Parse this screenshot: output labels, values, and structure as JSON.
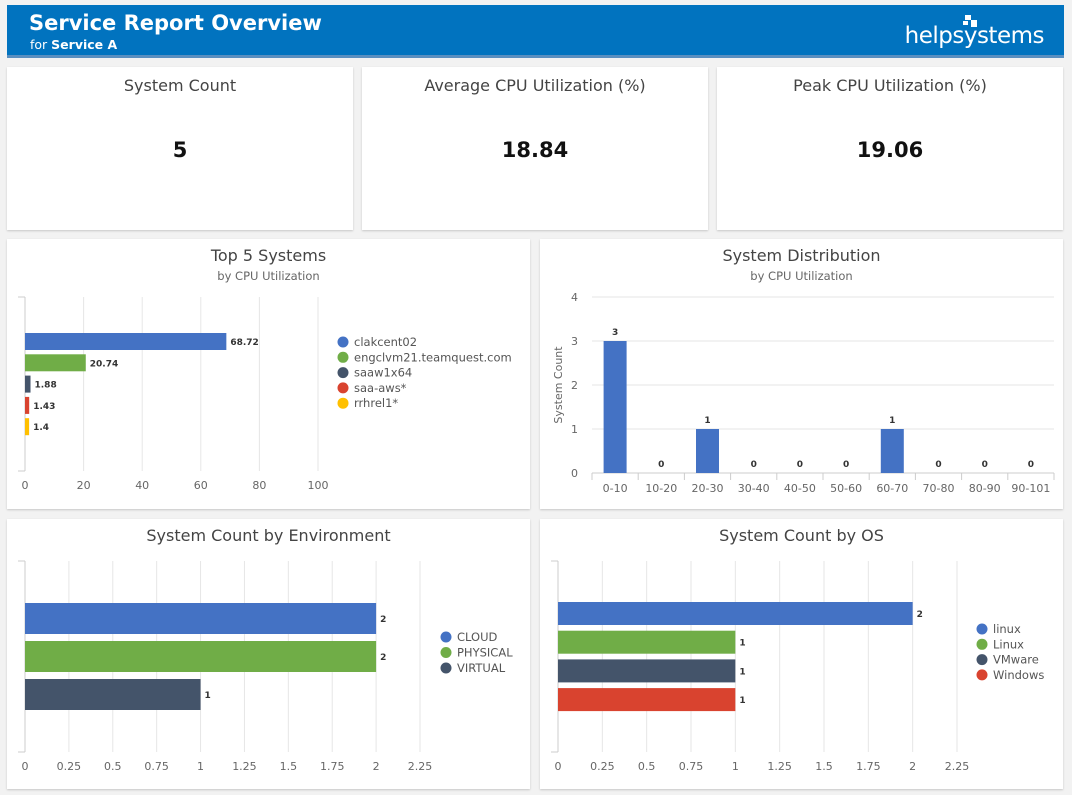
{
  "header": {
    "title": "Service Report Overview",
    "subtitle_prefix": "for",
    "service_name": "Service A",
    "logo_text": "helpsystems"
  },
  "kpis": [
    {
      "label": "System Count",
      "value": "5"
    },
    {
      "label": "Average CPU Utilization (%)",
      "value": "18.84"
    },
    {
      "label": "Peak CPU Utilization (%)",
      "value": "19.06"
    }
  ],
  "chart_data": [
    {
      "id": "top5",
      "type": "bar",
      "orientation": "horizontal",
      "title": "Top 5 Systems",
      "subtitle": "by CPU Utilization",
      "categories": [
        "clakcent02",
        "engclvm21.teamquest.com",
        "saaw1x64",
        "saa-aws*",
        "rrhrel1*"
      ],
      "values": [
        68.72,
        20.74,
        1.88,
        1.43,
        1.4
      ],
      "data_labels": [
        "68.72",
        "20.74",
        "1.88",
        "1.43",
        "1.4"
      ],
      "colors": [
        "#4472c4",
        "#70ad47",
        "#44546a",
        "#d9432f",
        "#ffc000"
      ],
      "xlim": [
        0,
        100
      ],
      "xticks": [
        "0",
        "20",
        "40",
        "60",
        "80",
        "100"
      ],
      "legend": "right"
    },
    {
      "id": "dist",
      "type": "bar",
      "orientation": "vertical",
      "title": "System Distribution",
      "subtitle": "by CPU Utilization",
      "ylabel": "System Count",
      "categories": [
        "0-10",
        "10-20",
        "20-30",
        "30-40",
        "40-50",
        "50-60",
        "60-70",
        "70-80",
        "80-90",
        "90-101"
      ],
      "values": [
        3,
        0,
        1,
        0,
        0,
        0,
        1,
        0,
        0,
        0
      ],
      "data_labels": [
        "3",
        "0",
        "1",
        "0",
        "0",
        "0",
        "1",
        "0",
        "0",
        "0"
      ],
      "color": "#4472c4",
      "ylim": [
        0,
        4
      ],
      "yticks": [
        "0",
        "1",
        "2",
        "3",
        "4"
      ]
    },
    {
      "id": "env",
      "type": "bar",
      "orientation": "horizontal",
      "title": "System Count by Environment",
      "categories": [
        "CLOUD",
        "PHYSICAL",
        "VIRTUAL"
      ],
      "values": [
        2,
        2,
        1
      ],
      "data_labels": [
        "2",
        "2",
        "1"
      ],
      "colors": [
        "#4472c4",
        "#70ad47",
        "#44546a"
      ],
      "xlim": [
        0,
        2.25
      ],
      "xticks": [
        "0",
        "0.25",
        "0.5",
        "0.75",
        "1",
        "1.25",
        "1.5",
        "1.75",
        "2",
        "2.25"
      ],
      "legend": "right"
    },
    {
      "id": "os",
      "type": "bar",
      "orientation": "horizontal",
      "title": "System Count by OS",
      "categories": [
        "linux",
        "Linux",
        "VMware",
        "Windows"
      ],
      "values": [
        2,
        1,
        1,
        1
      ],
      "data_labels": [
        "2",
        "1",
        "1",
        "1"
      ],
      "colors": [
        "#4472c4",
        "#70ad47",
        "#44546a",
        "#d9432f"
      ],
      "xlim": [
        0,
        2.25
      ],
      "xticks": [
        "0",
        "0.25",
        "0.5",
        "0.75",
        "1",
        "1.25",
        "1.5",
        "1.75",
        "2",
        "2.25"
      ],
      "legend": "right"
    }
  ]
}
